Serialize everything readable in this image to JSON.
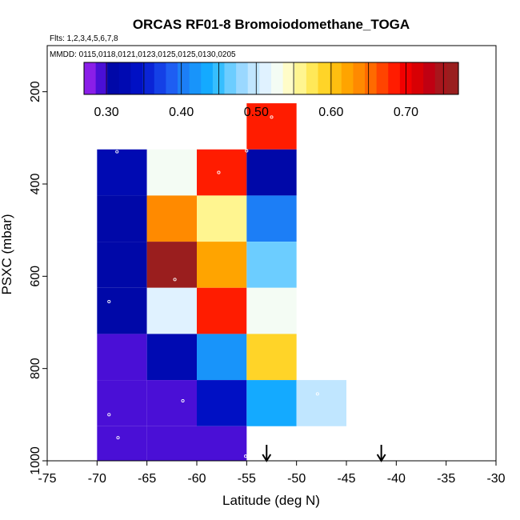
{
  "chart_data": {
    "type": "heatmap",
    "title": "ORCAS RF01-8 Bromoiodomethane_TOGA",
    "subtitle_flights": "Flts: 1,2,3,4,5,6,7,8",
    "subtitle_dates": "MMDD: 0115,0118,0121,0123,0125,0125,0130,0205",
    "xlabel": "Latitude (deg N)",
    "ylabel": "PSXC (mbar)",
    "xlim": [
      -75,
      -30
    ],
    "ylim": [
      1000,
      100
    ],
    "x_ticks": [
      -75,
      -70,
      -65,
      -60,
      -55,
      -50,
      -45,
      -40,
      -35,
      -30
    ],
    "x_tick_labels": [
      "-75",
      "-70",
      "-65",
      "-60",
      "-55",
      "-50",
      "-45",
      "-40",
      "-35",
      "-30"
    ],
    "y_ticks": [
      200,
      400,
      600,
      800,
      1000
    ],
    "y_tick_labels": [
      "200",
      "400",
      "600",
      "800",
      "1000"
    ],
    "colorbar": {
      "range": [
        0.27,
        0.77
      ],
      "ticks": [
        0.3,
        0.4,
        0.5,
        0.6,
        0.7
      ],
      "tick_labels": [
        "0.30",
        "0.40",
        "0.50",
        "0.60",
        "0.70"
      ],
      "colors": [
        "#8a1ee8",
        "#4a0fd6",
        "#0008a8",
        "#000ab2",
        "#0010c4",
        "#0a24d6",
        "#1440e6",
        "#1e5ef2",
        "#1c7ef6",
        "#1894fa",
        "#14aaff",
        "#36beff",
        "#6ccdff",
        "#9ad8ff",
        "#c0e6ff",
        "#e0f2ff",
        "#f4fcf4",
        "#fffcc8",
        "#fff590",
        "#ffe858",
        "#ffd428",
        "#ffbe10",
        "#ffa400",
        "#ff8a00",
        "#ff6a00",
        "#ff4400",
        "#ff1c00",
        "#f20000",
        "#d80004",
        "#c00012",
        "#a8161c",
        "#9a1e1e"
      ]
    },
    "cells": [
      {
        "lat0": -55,
        "lat1": -50,
        "p0": 225,
        "p1": 325,
        "value": 0.69
      },
      {
        "lat0": -70,
        "lat1": -65,
        "p0": 325,
        "p1": 425,
        "value": 0.33
      },
      {
        "lat0": -65,
        "lat1": -60,
        "p0": 325,
        "p1": 425,
        "value": 0.52
      },
      {
        "lat0": -60,
        "lat1": -55,
        "p0": 325,
        "p1": 425,
        "value": 0.69
      },
      {
        "lat0": -55,
        "lat1": -50,
        "p0": 325,
        "p1": 425,
        "value": 0.31
      },
      {
        "lat0": -70,
        "lat1": -65,
        "p0": 425,
        "p1": 525,
        "value": 0.31
      },
      {
        "lat0": -65,
        "lat1": -60,
        "p0": 425,
        "p1": 525,
        "value": 0.64
      },
      {
        "lat0": -60,
        "lat1": -55,
        "p0": 425,
        "p1": 525,
        "value": 0.56
      },
      {
        "lat0": -55,
        "lat1": -50,
        "p0": 425,
        "p1": 525,
        "value": 0.41
      },
      {
        "lat0": -70,
        "lat1": -65,
        "p0": 525,
        "p1": 625,
        "value": 0.31
      },
      {
        "lat0": -65,
        "lat1": -60,
        "p0": 525,
        "p1": 625,
        "value": 0.76
      },
      {
        "lat0": -60,
        "lat1": -55,
        "p0": 525,
        "p1": 625,
        "value": 0.62
      },
      {
        "lat0": -55,
        "lat1": -50,
        "p0": 525,
        "p1": 625,
        "value": 0.47
      },
      {
        "lat0": -70,
        "lat1": -65,
        "p0": 625,
        "p1": 725,
        "value": 0.31
      },
      {
        "lat0": -65,
        "lat1": -60,
        "p0": 625,
        "p1": 725,
        "value": 0.51
      },
      {
        "lat0": -60,
        "lat1": -55,
        "p0": 625,
        "p1": 725,
        "value": 0.69
      },
      {
        "lat0": -55,
        "lat1": -50,
        "p0": 625,
        "p1": 725,
        "value": 0.53
      },
      {
        "lat0": -70,
        "lat1": -65,
        "p0": 725,
        "p1": 825,
        "value": 0.3
      },
      {
        "lat0": -65,
        "lat1": -60,
        "p0": 725,
        "p1": 825,
        "value": 0.32
      },
      {
        "lat0": -60,
        "lat1": -55,
        "p0": 725,
        "p1": 825,
        "value": 0.42
      },
      {
        "lat0": -55,
        "lat1": -50,
        "p0": 725,
        "p1": 825,
        "value": 0.59
      },
      {
        "lat0": -70,
        "lat1": -65,
        "p0": 825,
        "p1": 925,
        "value": 0.3
      },
      {
        "lat0": -65,
        "lat1": -60,
        "p0": 825,
        "p1": 925,
        "value": 0.29
      },
      {
        "lat0": -60,
        "lat1": -55,
        "p0": 825,
        "p1": 925,
        "value": 0.34
      },
      {
        "lat0": -55,
        "lat1": -50,
        "p0": 825,
        "p1": 925,
        "value": 0.44
      },
      {
        "lat0": -50,
        "lat1": -45,
        "p0": 825,
        "p1": 925,
        "value": 0.49
      },
      {
        "lat0": -70,
        "lat1": -65,
        "p0": 925,
        "p1": 1000,
        "value": 0.3
      },
      {
        "lat0": -65,
        "lat1": -60,
        "p0": 925,
        "p1": 1000,
        "value": 0.3
      },
      {
        "lat0": -60,
        "lat1": -55,
        "p0": 925,
        "p1": 1000,
        "value": 0.3
      }
    ],
    "points": [
      {
        "lat": -52.5,
        "p": 255
      },
      {
        "lat": -68.0,
        "p": 330
      },
      {
        "lat": -57.8,
        "p": 375
      },
      {
        "lat": -55.0,
        "p": 328
      },
      {
        "lat": -62.2,
        "p": 607
      },
      {
        "lat": -68.8,
        "p": 655
      },
      {
        "lat": -61.4,
        "p": 870
      },
      {
        "lat": -47.9,
        "p": 855
      },
      {
        "lat": -68.8,
        "p": 900
      },
      {
        "lat": -67.9,
        "p": 950
      },
      {
        "lat": -55.1,
        "p": 990
      }
    ],
    "arrows": [
      {
        "lat": -53.0
      },
      {
        "lat": -41.5
      }
    ]
  }
}
